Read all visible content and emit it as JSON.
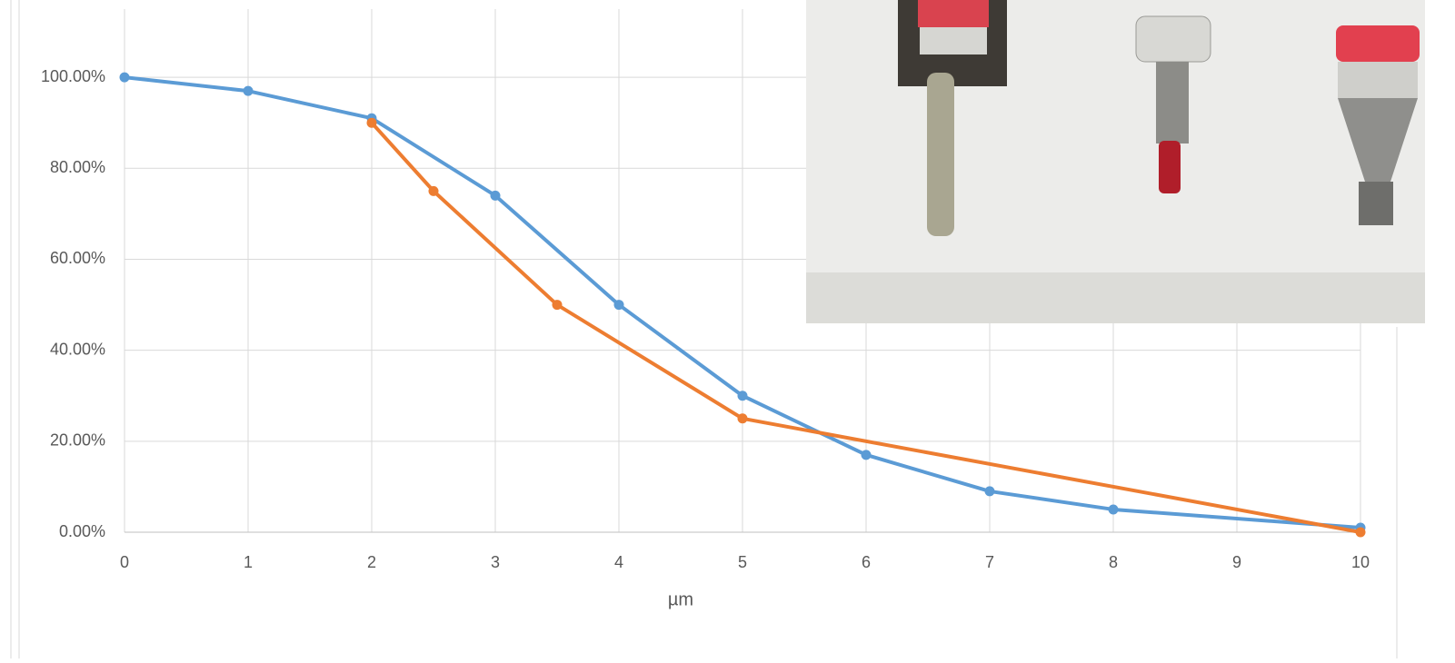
{
  "chart_data": {
    "type": "line",
    "x_label": "µm",
    "xlim": [
      0,
      10
    ],
    "xticks": [
      0,
      1,
      2,
      3,
      4,
      5,
      6,
      7,
      8,
      9,
      10
    ],
    "ylim": [
      0,
      115
    ],
    "yticks": [
      {
        "value": 0,
        "label": "0.00%"
      },
      {
        "value": 20,
        "label": "20.00%"
      },
      {
        "value": 40,
        "label": "40.00%"
      },
      {
        "value": 60,
        "label": "60.00%"
      },
      {
        "value": 80,
        "label": "80.00%"
      },
      {
        "value": 100,
        "label": "100.00%"
      }
    ],
    "grid": true,
    "series": [
      {
        "color": "#5b9bd5",
        "x": [
          0,
          1,
          2,
          3,
          4,
          5,
          6,
          7,
          8,
          10
        ],
        "values": [
          100,
          97,
          91,
          74,
          50,
          30,
          17,
          9,
          5,
          1
        ]
      },
      {
        "color": "#ed7d31",
        "x": [
          2,
          2.5,
          3.5,
          5,
          10
        ],
        "values": [
          90,
          75,
          50,
          25,
          0
        ]
      }
    ]
  }
}
